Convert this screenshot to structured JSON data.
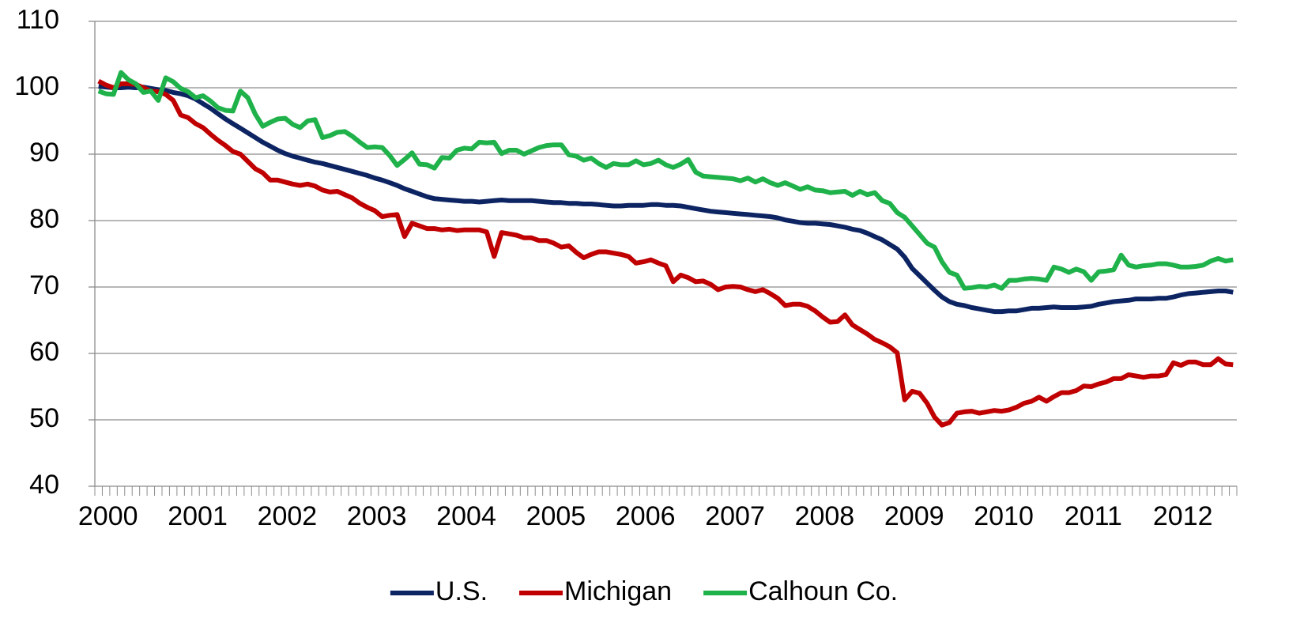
{
  "chart_data": {
    "type": "line",
    "categories": [
      "2000",
      null,
      null,
      null,
      null,
      null,
      null,
      null,
      null,
      null,
      null,
      null,
      "2001",
      null,
      null,
      null,
      null,
      null,
      null,
      null,
      null,
      null,
      null,
      null,
      "2002",
      null,
      null,
      null,
      null,
      null,
      null,
      null,
      null,
      null,
      null,
      null,
      "2003",
      null,
      null,
      null,
      null,
      null,
      null,
      null,
      null,
      null,
      null,
      null,
      "2004",
      null,
      null,
      null,
      null,
      null,
      null,
      null,
      null,
      null,
      null,
      null,
      "2005",
      null,
      null,
      null,
      null,
      null,
      null,
      null,
      null,
      null,
      null,
      null,
      "2006",
      null,
      null,
      null,
      null,
      null,
      null,
      null,
      null,
      null,
      null,
      null,
      "2007",
      null,
      null,
      null,
      null,
      null,
      null,
      null,
      null,
      null,
      null,
      null,
      "2008",
      null,
      null,
      null,
      null,
      null,
      null,
      null,
      null,
      null,
      null,
      null,
      "2009",
      null,
      null,
      null,
      null,
      null,
      null,
      null,
      null,
      null,
      null,
      null,
      "2010",
      null,
      null,
      null,
      null,
      null,
      null,
      null,
      null,
      null,
      null,
      null,
      "2011",
      null,
      null,
      null,
      null,
      null,
      null,
      null,
      null,
      null,
      null,
      null,
      "2012",
      null,
      null,
      null,
      null,
      null,
      null,
      null,
      null
    ],
    "series": [
      {
        "name": "U.S.",
        "color": "#0d2463",
        "values": [
          100.2,
          100.1,
          100.0,
          100.0,
          100.1,
          100.0,
          100.1,
          99.9,
          99.7,
          99.6,
          99.3,
          99.1,
          98.8,
          98.3,
          97.6,
          96.9,
          96.1,
          95.3,
          94.6,
          93.9,
          93.2,
          92.5,
          91.8,
          91.2,
          90.6,
          90.1,
          89.7,
          89.4,
          89.1,
          88.8,
          88.6,
          88.3,
          88.0,
          87.7,
          87.4,
          87.1,
          86.8,
          86.4,
          86.1,
          85.7,
          85.3,
          84.8,
          84.4,
          84.0,
          83.6,
          83.3,
          83.2,
          83.1,
          83.0,
          82.9,
          82.9,
          82.8,
          82.9,
          83.0,
          83.1,
          83.0,
          83.0,
          83.0,
          83.0,
          82.9,
          82.8,
          82.7,
          82.7,
          82.6,
          82.6,
          82.5,
          82.5,
          82.4,
          82.3,
          82.2,
          82.2,
          82.3,
          82.3,
          82.3,
          82.4,
          82.4,
          82.3,
          82.3,
          82.2,
          82.0,
          81.8,
          81.6,
          81.4,
          81.3,
          81.2,
          81.1,
          81.0,
          80.9,
          80.8,
          80.7,
          80.6,
          80.4,
          80.1,
          79.9,
          79.7,
          79.6,
          79.6,
          79.5,
          79.4,
          79.2,
          79.0,
          78.7,
          78.5,
          78.1,
          77.6,
          77.1,
          76.4,
          75.7,
          74.5,
          72.8,
          71.7,
          70.6,
          69.5,
          68.5,
          67.8,
          67.4,
          67.2,
          66.9,
          66.7,
          66.5,
          66.3,
          66.3,
          66.4,
          66.4,
          66.6,
          66.8,
          66.8,
          66.9,
          67.0,
          66.9,
          66.9,
          66.9,
          67.0,
          67.1,
          67.4,
          67.6,
          67.8,
          67.9,
          68.0,
          68.2,
          68.2,
          68.2,
          68.3,
          68.3,
          68.5,
          68.8,
          69.0,
          69.1,
          69.2,
          69.3,
          69.4,
          69.4,
          69.2
        ]
      },
      {
        "name": "Michigan",
        "color": "#c00000",
        "values": [
          101.0,
          100.4,
          100.0,
          100.6,
          100.6,
          100.5,
          100.0,
          99.5,
          99.4,
          99.0,
          98.1,
          95.9,
          95.5,
          94.6,
          94.0,
          93.0,
          92.1,
          91.3,
          90.4,
          90.0,
          88.9,
          87.8,
          87.2,
          86.1,
          86.1,
          85.8,
          85.5,
          85.3,
          85.5,
          85.2,
          84.6,
          84.3,
          84.4,
          83.9,
          83.4,
          82.6,
          82.0,
          81.5,
          80.6,
          80.8,
          80.9,
          77.6,
          79.6,
          79.2,
          78.8,
          78.8,
          78.6,
          78.7,
          78.5,
          78.6,
          78.6,
          78.6,
          78.3,
          74.6,
          78.2,
          78.0,
          77.8,
          77.4,
          77.4,
          77.0,
          77.0,
          76.6,
          76.0,
          76.2,
          75.2,
          74.4,
          74.9,
          75.3,
          75.3,
          75.1,
          74.9,
          74.6,
          73.6,
          73.8,
          74.1,
          73.6,
          73.2,
          70.8,
          71.8,
          71.4,
          70.8,
          70.9,
          70.4,
          69.6,
          70.0,
          70.1,
          70.0,
          69.6,
          69.3,
          69.6,
          69.0,
          68.3,
          67.2,
          67.4,
          67.4,
          67.1,
          66.4,
          65.5,
          64.7,
          64.8,
          65.8,
          64.3,
          63.6,
          62.9,
          62.1,
          61.6,
          61.0,
          60.1,
          53.0,
          54.3,
          54.0,
          52.5,
          50.4,
          49.2,
          49.6,
          51.0,
          51.2,
          51.3,
          51.0,
          51.2,
          51.4,
          51.3,
          51.5,
          51.9,
          52.5,
          52.8,
          53.4,
          52.8,
          53.5,
          54.1,
          54.1,
          54.4,
          55.1,
          55.0,
          55.4,
          55.7,
          56.2,
          56.2,
          56.8,
          56.6,
          56.4,
          56.6,
          56.6,
          56.8,
          58.6,
          58.2,
          58.7,
          58.7,
          58.3,
          58.3,
          59.2,
          58.4,
          58.3
        ]
      },
      {
        "name": "Calhoun Co.",
        "color": "#1fb24a",
        "values": [
          99.5,
          99.1,
          99.0,
          102.3,
          101.2,
          100.6,
          99.3,
          99.5,
          98.1,
          101.5,
          100.9,
          99.9,
          99.4,
          98.5,
          98.8,
          98.0,
          97.0,
          96.6,
          96.5,
          99.5,
          98.5,
          96.0,
          94.2,
          94.8,
          95.3,
          95.4,
          94.5,
          94.0,
          95.0,
          95.2,
          92.5,
          92.8,
          93.3,
          93.4,
          92.7,
          91.8,
          91.0,
          91.1,
          91.0,
          89.8,
          88.3,
          89.2,
          90.2,
          88.5,
          88.4,
          87.9,
          89.5,
          89.4,
          90.6,
          90.9,
          90.8,
          91.8,
          91.7,
          91.8,
          90.1,
          90.6,
          90.6,
          90.0,
          90.5,
          91.0,
          91.3,
          91.4,
          91.4,
          89.9,
          89.7,
          89.1,
          89.4,
          88.6,
          88.0,
          88.6,
          88.4,
          88.4,
          89.0,
          88.4,
          88.6,
          89.1,
          88.4,
          88.0,
          88.5,
          89.2,
          87.3,
          86.7,
          86.6,
          86.5,
          86.4,
          86.3,
          86.0,
          86.4,
          85.8,
          86.3,
          85.7,
          85.3,
          85.7,
          85.2,
          84.7,
          85.1,
          84.6,
          84.5,
          84.2,
          84.3,
          84.4,
          83.8,
          84.4,
          83.9,
          84.2,
          83.0,
          82.6,
          81.2,
          80.5,
          79.2,
          77.9,
          76.6,
          76.0,
          73.8,
          72.2,
          71.8,
          69.8,
          69.9,
          70.1,
          70.0,
          70.3,
          69.8,
          71.0,
          71.0,
          71.2,
          71.3,
          71.2,
          71.0,
          73.0,
          72.7,
          72.2,
          72.7,
          72.3,
          71.0,
          72.3,
          72.4,
          72.6,
          74.8,
          73.3,
          73.0,
          73.2,
          73.3,
          73.5,
          73.5,
          73.3,
          73.0,
          73.0,
          73.1,
          73.3,
          73.9,
          74.3,
          73.9,
          74.1
        ]
      }
    ],
    "ylim": [
      40,
      110
    ],
    "yticks": [
      40,
      50,
      60,
      70,
      80,
      90,
      100,
      110
    ],
    "grid": true,
    "legend": "bottom"
  }
}
